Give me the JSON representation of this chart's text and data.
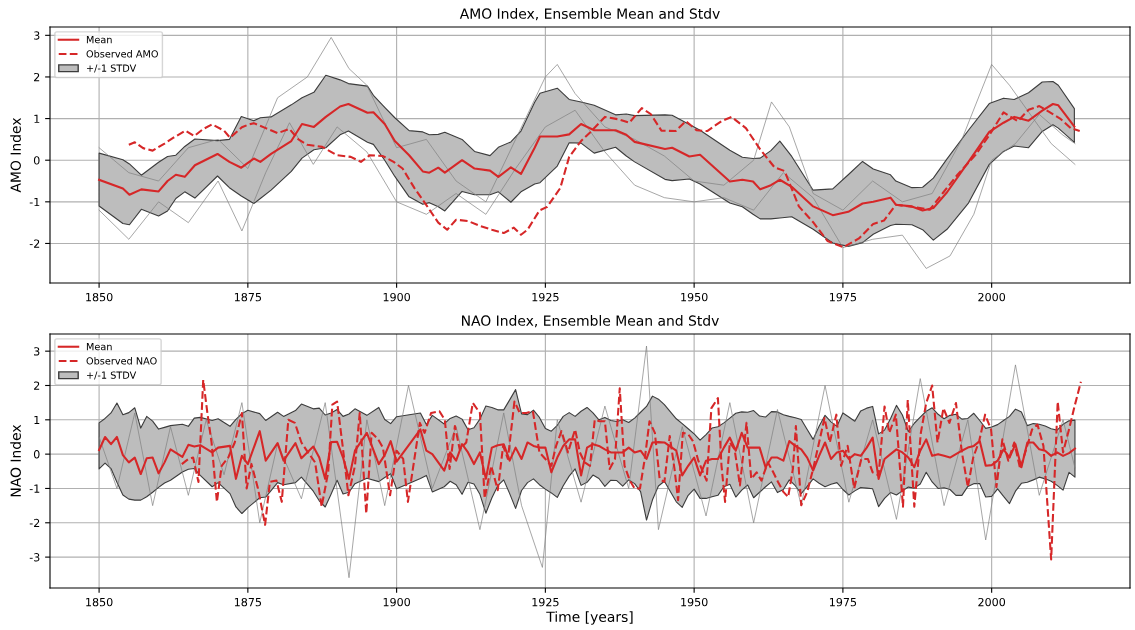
{
  "chart_data": [
    {
      "type": "line",
      "title": "AMO Index, Ensemble Mean and Stdv",
      "ylabel": "AMO Index",
      "xlim": [
        1841.75,
        2023.25
      ],
      "ylim": [
        -2.95,
        3.2
      ],
      "xticks": [
        1850,
        1875,
        1900,
        1925,
        1950,
        1975,
        2000
      ],
      "yticks": [
        -2,
        -1,
        0,
        1,
        2,
        3
      ],
      "grid": true,
      "legend": "top left",
      "series": [
        {
          "color": "#808080",
          "x": [
            1850,
            1855,
            1860,
            1865,
            1870,
            1875,
            1880,
            1885,
            1889,
            1892,
            1895,
            1900,
            1905,
            1910,
            1915,
            1920,
            1925,
            1927,
            1930,
            1935,
            1940,
            1945,
            1950,
            1955,
            1960,
            1963,
            1966,
            1970,
            1975,
            1980,
            1985,
            1990,
            1995,
            2000,
            2003,
            2007,
            2010,
            2014
          ],
          "values": [
            0.3,
            -0.3,
            -0.5,
            0.3,
            0.5,
            -0.2,
            1.5,
            2.0,
            2.95,
            2.2,
            1.8,
            0.3,
            0.5,
            -0.5,
            -1.0,
            0.5,
            2.0,
            2.3,
            1.6,
            0.8,
            0.5,
            0.1,
            -0.5,
            -0.6,
            0.0,
            1.4,
            0.8,
            -0.8,
            -1.2,
            -0.5,
            -1.0,
            -0.8,
            0.5,
            2.3,
            1.8,
            1.0,
            0.4,
            -0.1
          ]
        },
        {
          "color": "#808080",
          "x": [
            1850,
            1855,
            1860,
            1865,
            1870,
            1874,
            1878,
            1882,
            1886,
            1890,
            1895,
            1900,
            1905,
            1910,
            1915,
            1920,
            1925,
            1930,
            1935,
            1940,
            1945,
            1950,
            1955,
            1960,
            1965,
            1970,
            1975,
            1980,
            1985,
            1989,
            1993,
            1997,
            2000,
            2004,
            2008,
            2012,
            2014
          ],
          "values": [
            -1.2,
            -1.9,
            -1.0,
            -1.5,
            -0.5,
            -1.7,
            -0.3,
            0.9,
            -0.1,
            0.8,
            0.2,
            -1.0,
            -1.3,
            -0.8,
            -1.3,
            -0.2,
            0.8,
            1.2,
            0.2,
            -0.6,
            -0.9,
            -1.0,
            -0.9,
            -1.2,
            -0.3,
            -0.9,
            -2.1,
            -1.9,
            -1.8,
            -2.6,
            -2.3,
            -1.3,
            0.0,
            0.4,
            1.1,
            0.6,
            0.4
          ]
        },
        {
          "name": "Mean",
          "color": "#d62728",
          "line_style": "solid",
          "x": [
            1850,
            1854,
            1855.1,
            1857.1,
            1860,
            1861.5,
            1862.9,
            1864.4,
            1866.1,
            1869.9,
            1871.9,
            1873.9,
            1876,
            1877.1,
            1878.9,
            1882.3,
            1884.1,
            1886.1,
            1888.1,
            1890.5,
            1891.9,
            1895.1,
            1896.1,
            1898,
            1899.7,
            1902.1,
            1904.4,
            1905.5,
            1907,
            1908.1,
            1911,
            1913.1,
            1915.7,
            1917.1,
            1919.2,
            1920.9,
            1923.2,
            1924.1,
            1927,
            1929,
            1931,
            1933.2,
            1936.8,
            1938.6,
            1940,
            1945.1,
            1946.3,
            1949.2,
            1951,
            1956,
            1958.1,
            1959.9,
            1961.1,
            1962.9,
            1964.4,
            1966.4,
            1970,
            1973.3,
            1975.9,
            1978.3,
            1980.1,
            1983,
            1983.9,
            1986.6,
            1988.4,
            1990.2,
            1992.5,
            1996.1,
            1999.6,
            2002,
            2003.8,
            2006.2,
            2008.5,
            2010.3,
            2011.2,
            2013.9
          ],
          "values": [
            -0.47,
            -0.68,
            -0.83,
            -0.7,
            -0.75,
            -0.5,
            -0.35,
            -0.4,
            -0.12,
            0.15,
            -0.04,
            -0.18,
            0.04,
            -0.04,
            0.15,
            0.46,
            0.87,
            0.8,
            1.04,
            1.29,
            1.35,
            1.14,
            1.15,
            0.87,
            0.46,
            0.12,
            -0.27,
            -0.3,
            -0.18,
            -0.3,
            0,
            -0.2,
            -0.25,
            -0.4,
            -0.17,
            -0.33,
            0.3,
            0.57,
            0.57,
            0.62,
            0.87,
            0.72,
            0.72,
            0.61,
            0.44,
            0.27,
            0.3,
            0.09,
            0.13,
            -0.51,
            -0.47,
            -0.51,
            -0.7,
            -0.6,
            -0.47,
            -0.64,
            -1.11,
            -1.32,
            -1.24,
            -1.04,
            -1.0,
            -0.9,
            -1.07,
            -1.11,
            -1.21,
            -1.15,
            -0.77,
            -0.04,
            0.68,
            0.9,
            1.04,
            0.95,
            1.19,
            1.35,
            1.32,
            0.81
          ],
          "upper": [
            0.17,
            0.01,
            -0.09,
            -0.36,
            -0.05,
            0.09,
            0.12,
            0.33,
            0.51,
            0.47,
            0.5,
            1.05,
            0.95,
            1.02,
            1.04,
            1.33,
            1.5,
            1.63,
            2.04,
            1.93,
            1.84,
            1.78,
            1.56,
            1.27,
            1.02,
            0.71,
            0.68,
            0.61,
            0.62,
            0.67,
            0.5,
            0.21,
            0.11,
            0.31,
            0.44,
            0.7,
            1.39,
            1.61,
            1.73,
            1.46,
            1.4,
            1.32,
            1.09,
            1.11,
            1.07,
            1.09,
            1.08,
            0.86,
            0.72,
            0.24,
            0.07,
            0.04,
            0.05,
            0.23,
            0.46,
            0.09,
            -0.72,
            -0.69,
            -0.35,
            -0.03,
            -0.21,
            -0.35,
            -0.5,
            -0.66,
            -0.65,
            -0.43,
            0.03,
            0.72,
            1.36,
            1.49,
            1.46,
            1.62,
            1.88,
            1.89,
            1.8,
            1.24
          ],
          "lower": [
            -1.1,
            -1.52,
            -1.55,
            -1.18,
            -1.34,
            -1.22,
            -0.92,
            -0.76,
            -0.91,
            -0.38,
            -0.66,
            -0.86,
            -1.04,
            -0.92,
            -0.72,
            -0.27,
            0.05,
            0.25,
            0.3,
            0.61,
            0.7,
            0.43,
            0.38,
            0,
            -0.39,
            -0.88,
            -1.06,
            -1.02,
            -1.12,
            -1.22,
            -0.75,
            -0.83,
            -0.83,
            -0.76,
            -1.01,
            -0.76,
            -0.57,
            -0.54,
            -0.14,
            0.42,
            0.41,
            0.17,
            0.31,
            0.1,
            -0.04,
            -0.46,
            -0.49,
            -0.45,
            -0.57,
            -1.03,
            -1.12,
            -1.3,
            -1.41,
            -1.41,
            -1.39,
            -1.36,
            -1.66,
            -1.99,
            -2.07,
            -1.98,
            -1.78,
            -1.57,
            -1.54,
            -1.55,
            -1.67,
            -1.92,
            -1.66,
            -1.03,
            -0.1,
            0.21,
            0.34,
            0.3,
            0.69,
            0.85,
            0.77,
            0.43
          ]
        },
        {
          "type": "area",
          "name": "+/-1 STDV",
          "color": "#bdbdbd"
        },
        {
          "name": "Observed AMO",
          "color": "#d62728",
          "line_style": "dashed",
          "x": [
            1855,
            1856,
            1857.4,
            1859,
            1861,
            1862.5,
            1864.5,
            1866,
            1867.5,
            1869,
            1871,
            1872,
            1874,
            1875,
            1876,
            1878,
            1880,
            1882,
            1883.5,
            1885,
            1887.5,
            1890,
            1892.3,
            1894,
            1895.5,
            1897.7,
            1899.5,
            1901,
            1903,
            1905,
            1907,
            1908.5,
            1910,
            1912,
            1914,
            1916,
            1918,
            1919.7,
            1920.9,
            1922,
            1924,
            1925.3,
            1927.5,
            1929,
            1931,
            1932.6,
            1935,
            1937.4,
            1939.1,
            1941.2,
            1942.7,
            1944.5,
            1946.9,
            1948.6,
            1950.4,
            1952.2,
            1954.6,
            1956.3,
            1958.7,
            1961.1,
            1963.5,
            1965.2,
            1967.6,
            1970,
            1972.4,
            1975.1,
            1977.7,
            1980.1,
            1981.9,
            1983.9,
            1987.2,
            1989.6,
            1991.9,
            1994.3,
            1997.3,
            1999.6,
            2002,
            2004.4,
            2006.2,
            2008,
            2009.8,
            2011.5,
            2013.3,
            2014.8
          ],
          "values": [
            0.37,
            0.43,
            0.29,
            0.23,
            0.4,
            0.54,
            0.71,
            0.58,
            0.75,
            0.86,
            0.71,
            0.54,
            0.79,
            0.85,
            0.89,
            0.77,
            0.65,
            0.75,
            0.5,
            0.37,
            0.32,
            0.12,
            0.08,
            -0.04,
            0.12,
            0.1,
            -0.04,
            -0.2,
            -0.67,
            -1.08,
            -1.5,
            -1.67,
            -1.43,
            -1.46,
            -1.58,
            -1.67,
            -1.75,
            -1.62,
            -1.79,
            -1.67,
            -1.21,
            -1.12,
            -0.67,
            0.08,
            0.46,
            0.68,
            1.04,
            0.98,
            0.9,
            1.25,
            1.11,
            0.71,
            0.7,
            0.94,
            0.72,
            0.7,
            0.94,
            1.04,
            0.77,
            0.26,
            -0.17,
            -0.26,
            -1.11,
            -1.49,
            -1.94,
            -2.09,
            -1.88,
            -1.53,
            -1.45,
            -1.07,
            -1.13,
            -1.19,
            -0.77,
            -0.34,
            0.13,
            0.6,
            1.15,
            0.94,
            1.21,
            1.3,
            1.15,
            1.0,
            0.77,
            0.7
          ]
        }
      ]
    },
    {
      "type": "line",
      "title": "NAO Index, Ensemble Mean and Stdv",
      "xlabel": "Time [years]",
      "ylabel": "NAO Index",
      "xlim": [
        1841.75,
        2023.25
      ],
      "ylim": [
        -3.9,
        3.5
      ],
      "xticks": [
        1850,
        1875,
        1900,
        1925,
        1950,
        1975,
        2000
      ],
      "yticks": [
        -3,
        -2,
        -1,
        0,
        1,
        2,
        3
      ],
      "grid": true,
      "legend": "top left",
      "series": [
        {
          "color": "#808080",
          "x": [
            1850,
            1853,
            1856,
            1859,
            1862,
            1865,
            1868,
            1871,
            1874,
            1877,
            1880,
            1884,
            1888,
            1892,
            1895,
            1898,
            1902,
            1906,
            1910,
            1914,
            1918,
            1921,
            1924.5,
            1927,
            1931,
            1935,
            1939,
            1942,
            1944,
            1948,
            1952,
            1956,
            1960,
            1964,
            1968,
            1972,
            1976,
            1980,
            1984,
            1988,
            1992,
            1996,
            1999,
            2004,
            2008,
            2012,
            2014
          ],
          "values": [
            0.5,
            -1.0,
            1.2,
            -1.5,
            0.8,
            -1.2,
            1.0,
            -0.6,
            1.5,
            -2.0,
            0.3,
            -1.3,
            1.5,
            -3.6,
            1.0,
            -1.5,
            2.0,
            -1.0,
            0.8,
            -2.2,
            1.2,
            -1.5,
            -3.3,
            1.0,
            -1.4,
            1.4,
            -1.0,
            3.15,
            -2.2,
            0.8,
            -1.8,
            1.5,
            -2.0,
            1.3,
            -1.5,
            2.0,
            -1.4,
            1.0,
            -1.9,
            2.2,
            -1.5,
            1.0,
            -2.5,
            2.6,
            -1.2,
            1.0,
            -0.4
          ]
        },
        {
          "name": "Mean",
          "color": "#d62728",
          "line_style": "solid",
          "x": [
            1850,
            1851,
            1852,
            1853,
            1854,
            1855,
            1856,
            1857,
            1858,
            1859,
            1860,
            1861,
            1862,
            1864,
            1865,
            1866,
            1867,
            1869,
            1870,
            1872,
            1873,
            1874,
            1875,
            1877,
            1878,
            1880,
            1881,
            1883,
            1884,
            1886,
            1887,
            1888,
            1889,
            1890,
            1891,
            1892,
            1893,
            1895,
            1897,
            1898,
            1899,
            1900,
            1904,
            1905,
            1906,
            1908,
            1909,
            1910,
            1911,
            1912,
            1913,
            1914,
            1915,
            1916,
            1917,
            1918,
            1919,
            1920,
            1921,
            1922,
            1923,
            1924,
            1925,
            1926,
            1927,
            1928,
            1929,
            1930,
            1931,
            1932,
            1933,
            1934,
            1935,
            1936,
            1937,
            1938,
            1939,
            1940,
            1941,
            1942,
            1943,
            1944,
            1945,
            1947,
            1948,
            1949,
            1950,
            1951,
            1952,
            1953,
            1954,
            1955,
            1956,
            1957,
            1958,
            1959,
            1960,
            1961,
            1962,
            1963,
            1964,
            1965,
            1966,
            1967,
            1968,
            1969,
            1970,
            1971,
            1972,
            1973,
            1974,
            1975,
            1976,
            1977,
            1978,
            1979,
            1980,
            1981,
            1982,
            1983,
            1984,
            1985,
            1986,
            1987,
            1988,
            1989,
            1990,
            1991,
            1992,
            1993,
            1994,
            1995,
            1996,
            1997,
            1998,
            1999,
            2000,
            2001,
            2002,
            2003,
            2004,
            2005,
            2006,
            2007,
            2008,
            2009,
            2010,
            2011,
            2012,
            2013,
            2014
          ],
          "values": [
            0.12,
            0.5,
            0.29,
            0.5,
            -0.03,
            -0.24,
            -0.1,
            -0.58,
            -0.12,
            -0.1,
            -0.56,
            -0.24,
            0.14,
            -0.08,
            0.27,
            0.22,
            0.26,
            0.05,
            0.19,
            0.24,
            -0.72,
            -0.05,
            -0.29,
            0.67,
            -0.19,
            0.32,
            -0.19,
            0.32,
            -0.12,
            0.22,
            -0.1,
            -0.72,
            0.35,
            0.36,
            -0.1,
            -0.72,
            0.1,
            0.62,
            -0.29,
            -0.03,
            0.38,
            -0.22,
            0.72,
            0.1,
            0.0,
            -0.48,
            0.05,
            -0.19,
            0.29,
            0.05,
            -0.29,
            0.05,
            -0.72,
            0.19,
            0.26,
            0.29,
            -0.19,
            0.19,
            -0.14,
            0.34,
            0.24,
            0.19,
            0.19,
            -0.53,
            -0.1,
            0.24,
            0.43,
            0.43,
            -0.62,
            0.19,
            0.29,
            0.24,
            0.14,
            0.05,
            0.05,
            0.05,
            0.19,
            0.05,
            0.1,
            -0.14,
            0.34,
            0.35,
            0.34,
            0.1,
            -0.62,
            -0.34,
            -0.1,
            -0.62,
            -0.19,
            -0.14,
            -0.14,
            0.19,
            0.48,
            0.1,
            0.62,
            0.19,
            0.19,
            0.19,
            -0.38,
            -0.1,
            -0.1,
            -0.19,
            0.38,
            0.24,
            0.14,
            -0.1,
            -0.48,
            -0.05,
            0.34,
            -0.14,
            0.05,
            0.1,
            -0.14,
            0.0,
            -0.05,
            0.19,
            0.48,
            -0.72,
            -0.14,
            0.0,
            0.14,
            0.05,
            -0.1,
            -0.38,
            0.1,
            0.43,
            -0.05,
            0.0,
            -0.05,
            -0.1,
            0.0,
            0.1,
            0.19,
            0.24,
            0.38,
            -0.34,
            -0.32,
            -0.19,
            0.14,
            -0.1,
            0.29,
            -0.38,
            0.34,
            0.34,
            0.14,
            0.1,
            -0.05,
            0.05,
            -0.05,
            0.03,
            0.16
          ],
          "upper": [
            0.91,
            1.04,
            1.2,
            1.49,
            1.15,
            1.21,
            1.35,
            0.76,
            1.1,
            0.96,
            0.73,
            0.78,
            0.83,
            0.87,
            0.81,
            1.05,
            1.07,
            0.98,
            1.03,
            0.81,
            1.01,
            1.18,
            1.28,
            1.18,
            0.98,
            1.22,
            1.1,
            1.27,
            1.46,
            1.32,
            1.34,
            1.14,
            1.2,
            1.3,
            1.1,
            1.17,
            1.32,
            1.13,
            1.36,
            1.01,
            0.89,
            1.09,
            1.2,
            0.86,
            1.13,
            0.88,
            1.04,
            1.11,
            1.02,
            0.71,
            0.77,
            1.02,
            1.4,
            1.36,
            1.29,
            1.29,
            1.58,
            1.88,
            1.17,
            1.15,
            1.28,
            1.07,
            0.75,
            0.67,
            0.84,
            1.1,
            1.21,
            1.1,
            1.25,
            1.36,
            1.2,
            1.0,
            1.07,
            0.98,
            0.95,
            1.0,
            0.92,
            1.05,
            1.22,
            1.39,
            1.69,
            1.6,
            1.44,
            1.03,
            0.89,
            0.74,
            0.59,
            0.41,
            0.57,
            0.76,
            0.8,
            0.91,
            1.05,
            1.19,
            1.23,
            1.22,
            1.27,
            1.11,
            1.08,
            1.24,
            1.23,
            1.15,
            1.1,
            1.06,
            1.01,
            0.72,
            0.43,
            0.81,
            1.13,
            0.94,
            0.81,
            1.2,
            1.08,
            0.96,
            1.26,
            1.34,
            1.39,
            0.59,
            0.7,
            1.03,
            1.42,
            1.14,
            0.66,
            0.9,
            1.08,
            1.25,
            1.35,
            1.16,
            1.03,
            1.13,
            1.16,
            1.02,
            1.04,
            1.19,
            0.98,
            0.75,
            0.79,
            0.86,
            0.98,
            1.1,
            1.31,
            1.23,
            0.83,
            0.89,
            0.87,
            0.82,
            0.74,
            0.7,
            0.87,
            0.97,
            0.99
          ],
          "lower": [
            -0.43,
            -0.26,
            -0.42,
            -0.82,
            -1.19,
            -1.31,
            -1.34,
            -1.34,
            -1.24,
            -1.11,
            -0.97,
            -0.84,
            -0.76,
            -0.52,
            -0.44,
            -0.42,
            -0.62,
            -0.95,
            -0.83,
            -1.15,
            -1.54,
            -1.73,
            -1.56,
            -1.27,
            -1.25,
            -0.83,
            -0.89,
            -0.83,
            -0.67,
            -1.08,
            -1.36,
            -1.54,
            -1.16,
            -0.76,
            -1.16,
            -1.11,
            -0.86,
            -0.7,
            -0.8,
            -0.68,
            -0.57,
            -1.01,
            -0.71,
            -0.62,
            -1.1,
            -0.95,
            -0.79,
            -0.89,
            -1.17,
            -0.82,
            -0.87,
            -1.17,
            -1.72,
            -1.28,
            -0.92,
            -0.75,
            -1.15,
            -1.58,
            -1.06,
            -0.83,
            -0.72,
            -0.89,
            -1.02,
            -1.13,
            -1.26,
            -0.92,
            -0.64,
            -0.43,
            -0.91,
            -0.82,
            -0.61,
            -0.71,
            -0.94,
            -0.76,
            -0.77,
            -0.93,
            -0.75,
            -0.86,
            -1.09,
            -1.92,
            -1.33,
            -0.93,
            -0.79,
            -1.39,
            -1.55,
            -1.2,
            -1.02,
            -1.29,
            -1.29,
            -1.24,
            -1.2,
            -0.95,
            -0.88,
            -1.25,
            -1.05,
            -0.9,
            -1.27,
            -1.11,
            -0.95,
            -0.81,
            -1.12,
            -1.03,
            -0.75,
            -0.92,
            -1.15,
            -0.94,
            -0.72,
            -0.85,
            -0.95,
            -0.88,
            -0.83,
            -1.03,
            -1.19,
            -1.07,
            -0.97,
            -0.99,
            -1.01,
            -1.53,
            -1.29,
            -1.12,
            -1.19,
            -1.07,
            -0.96,
            -0.99,
            -0.87,
            -0.53,
            -0.81,
            -1.0,
            -0.98,
            -1.03,
            -1.2,
            -1.2,
            -0.94,
            -0.86,
            -0.86,
            -1.25,
            -1.23,
            -1.01,
            -1.23,
            -1.44,
            -1.08,
            -0.85,
            -0.82,
            -0.75,
            -0.67,
            -0.72,
            -0.79,
            -0.91,
            -1.05,
            -0.53,
            -0.67
          ]
        },
        {
          "type": "area",
          "name": "+/-1 STDV",
          "color": "#bdbdbd"
        },
        {
          "name": "Observed NAO",
          "color": "#d62728",
          "line_style": "dashed",
          "x": [
            1863.9,
            1865,
            1865.8,
            1866.7,
            1867.5,
            1868.2,
            1868.9,
            1869.8,
            1870.6,
            1871.7,
            1872.8,
            1874,
            1874.8,
            1875.6,
            1876.7,
            1877.9,
            1878.7,
            1879.8,
            1880.7,
            1881.8,
            1882.9,
            1884,
            1885.1,
            1886.3,
            1887.4,
            1888.5,
            1889.2,
            1890,
            1891,
            1891.9,
            1893,
            1893.8,
            1894.9,
            1895.8,
            1896.9,
            1897.7,
            1898.9,
            1900,
            1901.1,
            1901.9,
            1903.9,
            1904.7,
            1905.8,
            1907.2,
            1908.1,
            1908.9,
            1909.8,
            1910.6,
            1911.7,
            1912.8,
            1914,
            1914.8,
            1915.9,
            1917,
            1917.9,
            1918.7,
            1919.8,
            1920.7,
            1921.8,
            1922.9,
            1924,
            1925,
            1926,
            1926.8,
            1927.7,
            1928.8,
            1930,
            1930.8,
            1931.6,
            1932.5,
            1933.3,
            1934.1,
            1935,
            1935.8,
            1936.7,
            1937.5,
            1938.3,
            1939.2,
            1940,
            1940.9,
            1941.7,
            1942.5,
            1943.4,
            1944.2,
            1945,
            1945.9,
            1946.7,
            1947.3,
            1948.1,
            1949,
            1949.8,
            1950.7,
            1951.5,
            1952.1,
            1952.9,
            1954,
            1954.6,
            1955.2,
            1956,
            1956.8,
            1957.7,
            1958.8,
            1959.6,
            1960.5,
            1961.3,
            1962.4,
            1963.3,
            1964.1,
            1965,
            1965.8,
            1966.6,
            1967.1,
            1968,
            1969,
            1970,
            1971,
            1971.9,
            1972.8,
            1973.9,
            1974.7,
            1975.8,
            1976.9,
            1978.1,
            1979.2,
            1980,
            1981,
            1982,
            1982.8,
            1983.9,
            1985.1,
            1985.9,
            1987,
            1988.1,
            1989,
            1990,
            1990.9,
            1991.9,
            1992.9,
            1994,
            1995,
            1996,
            1996.9,
            1997.9,
            1998.9,
            1999.9,
            2000.8,
            2001.8,
            2002.8,
            2003.8,
            2004.8,
            2005.8,
            2006.8,
            2007.7,
            2008.7,
            2010,
            2011.1,
            2012,
            2013,
            2014,
            2015
          ],
          "values": [
            -0.29,
            -0.14,
            -0.1,
            -0.81,
            2.16,
            1.2,
            0.34,
            -1.39,
            -0.34,
            -0.1,
            0.34,
            1.2,
            -1.0,
            -0.29,
            -1.0,
            -2.06,
            -0.81,
            -0.77,
            -1.39,
            1.0,
            0.91,
            0.34,
            0.05,
            -0.24,
            -1.53,
            -0.53,
            1.44,
            1.53,
            0.14,
            -1.2,
            -0.34,
            1.2,
            -1.73,
            0.62,
            0.43,
            0.19,
            -1.2,
            0.1,
            -0.14,
            -1.39,
            0.91,
            0.62,
            1.2,
            1.25,
            1.0,
            -0.43,
            0.82,
            0.14,
            0.34,
            1.49,
            1.2,
            -1.29,
            -0.34,
            -1.05,
            0.24,
            -0.14,
            1.53,
            1.2,
            1.2,
            1.25,
            0.05,
            -0.14,
            -0.34,
            0.24,
            0.67,
            0.05,
            0.72,
            0.05,
            -0.24,
            -0.34,
            1.0,
            0.96,
            0.96,
            -0.43,
            -0.14,
            1.92,
            -0.34,
            -0.77,
            -1.0,
            -1.0,
            -0.14,
            0.96,
            0.62,
            -0.72,
            -0.81,
            0.53,
            -0.43,
            -1.34,
            0.62,
            0.58,
            0.38,
            -0.19,
            -0.53,
            -0.77,
            1.34,
            1.63,
            -0.34,
            -1.39,
            0.34,
            0.14,
            -0.91,
            0.91,
            -0.72,
            -0.53,
            -0.77,
            -0.24,
            -0.53,
            -0.81,
            -1.1,
            -1.25,
            -0.43,
            0.82,
            -1.49,
            -1.1,
            -0.43,
            0.34,
            1.05,
            0.34,
            1.15,
            -0.34,
            0.24,
            -1.0,
            -0.14,
            -0.14,
            -0.53,
            -0.62,
            1.39,
            0.62,
            1.15,
            -1.53,
            1.58,
            -1.53,
            0.62,
            1.49,
            2.0,
            0.34,
            1.34,
            0.91,
            1.49,
            0.05,
            -0.96,
            -0.1,
            0.38,
            1.15,
            0.72,
            -0.96,
            0.43,
            -0.19,
            0.34,
            -0.43,
            0.14,
            0.72,
            0.86,
            0.24,
            -3.07,
            1.53,
            0.05,
            0.72,
            1.44,
            2.11
          ]
        }
      ]
    }
  ]
}
